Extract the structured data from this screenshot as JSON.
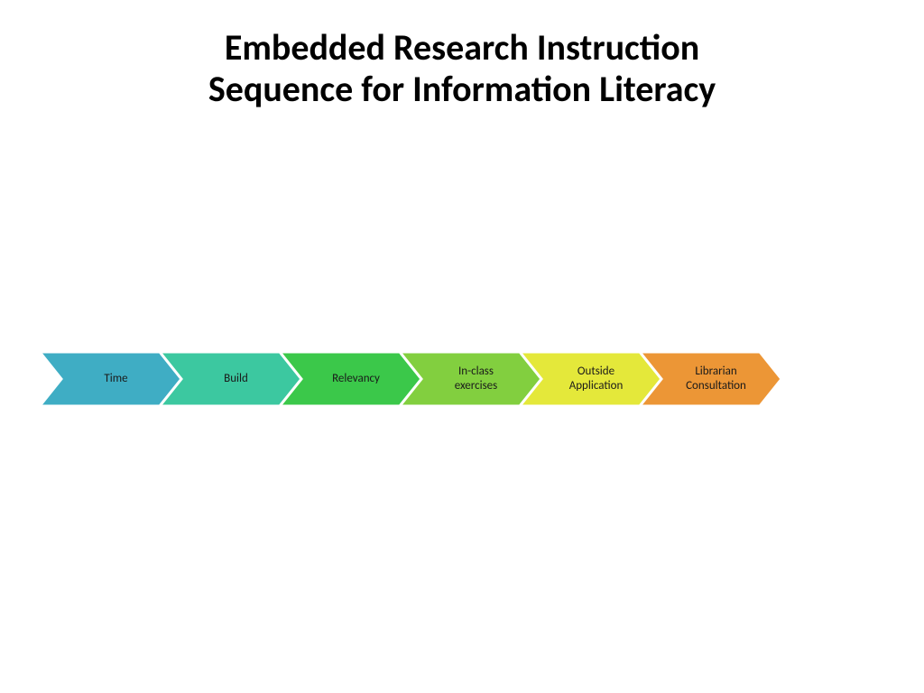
{
  "title": {
    "line1": "Embedded Research Instruction",
    "line2": "Sequence for Information Literacy",
    "fontsize": 40,
    "color": "#000000"
  },
  "diagram": {
    "type": "chevron-flow",
    "background_color": "#ffffff",
    "chevron_height": 60,
    "chevron_width": 157,
    "gap": 0,
    "notch_depth": 24,
    "label_fontsize": 13,
    "steps": [
      {
        "label": "Time",
        "fill": "#3fadc4",
        "text_color": "#1a1a1a"
      },
      {
        "label": "Build",
        "fill": "#3cc8a0",
        "text_color": "#1a1a1a"
      },
      {
        "label": "Relevancy",
        "fill": "#3bc84a",
        "text_color": "#1a1a1a"
      },
      {
        "label": "In-class\nexercises",
        "fill": "#82cf3f",
        "text_color": "#1a1a1a"
      },
      {
        "label": "Outside\nApplication",
        "fill": "#e4e83a",
        "text_color": "#1a1a1a"
      },
      {
        "label": "Librarian\nConsultation",
        "fill": "#ec9636",
        "text_color": "#1a1a1a"
      }
    ]
  }
}
